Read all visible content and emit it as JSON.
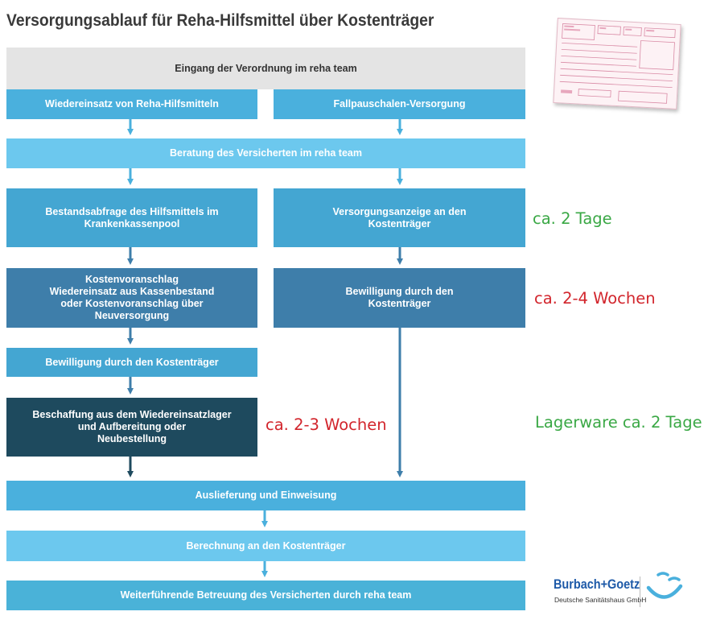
{
  "title": "Versorgungsablauf für Reha-Hilfsmittel über Kostenträger",
  "boxes": {
    "eingang": "Eingang der Verordnung im reha team",
    "wiedereinsatz": "Wiedereinsatz von Reha-Hilfsmitteln",
    "fallpauschalen": "Fallpauschalen-Versorgung",
    "beratung": "Beratung des Versicherten im reha team",
    "bestandsabfrage": "Bestandsabfrage des Hilfsmittels im\nKrankenkassenpool",
    "versorgungsanzeige": "Versorgungsanzeige an den\nKostenträger",
    "kostenvoranschlag": "Kostenvoranschlag\nWiedereinsatz aus Kassenbestand\noder Kostenvoranschlag über\nNeuversorgung",
    "bewilligung_right": "Bewilligung durch den\nKostenträger",
    "bewilligung_left": "Bewilligung durch den Kostenträger",
    "beschaffung": "Beschaffung aus dem Wiedereinsatzlager\nund Aufbereitung oder\nNeubestellung",
    "auslieferung": "Auslieferung und Einweisung",
    "berechnung": "Berechnung an den Kostenträger",
    "weiterfuehrend": "Weiterführende Betreuung des Versicherten durch reha team"
  },
  "notes": {
    "two_days": "ca. 2 Tage",
    "two_four_weeks": "ca. 2-4 Wochen",
    "two_three_weeks": "ca. 2-3 Wochen",
    "lagerware": "Lagerware ca. 2 Tage"
  },
  "logo": {
    "name": "Burbach+Goetz",
    "subtitle": "Deutsche Sanitätshaus GmbH"
  },
  "colors": {
    "gray": "#e4e4e4",
    "blue": "#4ab0dd",
    "light_blue": "#6cc8ee",
    "steel_blue": "#3e7eaa",
    "dark_teal": "#1e4a5e",
    "green_note": "#3aa845",
    "red_note": "#d2252c"
  }
}
